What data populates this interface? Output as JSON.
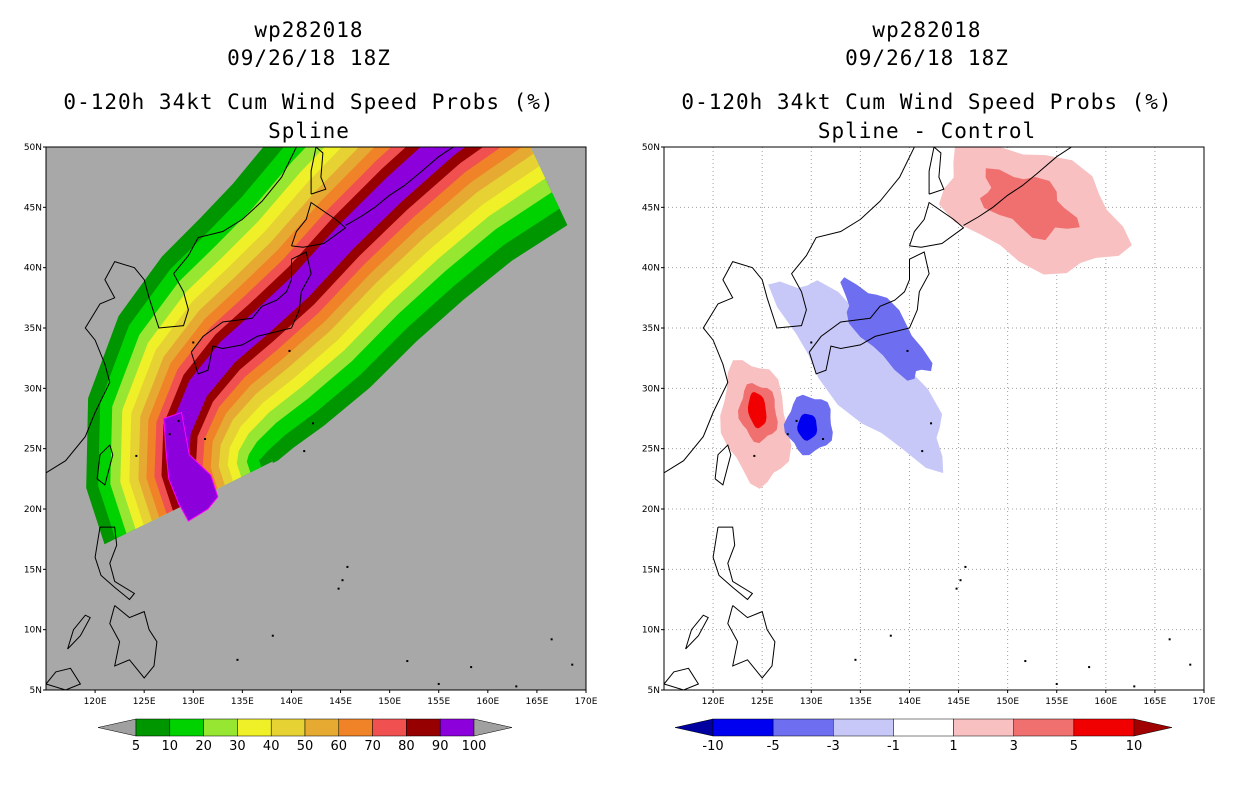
{
  "chart_data": [
    {
      "type": "contour-map",
      "title_lines": [
        "wp282018",
        "09/26/18 18Z",
        "0-120h 34kt Cum Wind Speed Probs (%)",
        "Spline"
      ],
      "map_extent": {
        "lon": [
          115,
          170
        ],
        "lat": [
          5,
          50
        ]
      },
      "x_ticks": [
        "120E",
        "125E",
        "130E",
        "135E",
        "140E",
        "145E",
        "150E",
        "155E",
        "160E",
        "165E",
        "170E"
      ],
      "y_ticks": [
        "50N",
        "45N",
        "40N",
        "35N",
        "30N",
        "25N",
        "20N",
        "15N",
        "10N",
        "5N"
      ],
      "colorbar": {
        "labels": [
          "5",
          "10",
          "20",
          "30",
          "40",
          "50",
          "60",
          "70",
          "80",
          "90",
          "100"
        ],
        "colors": [
          "#a0a0a0",
          "#009600",
          "#00d200",
          "#96e632",
          "#f0f028",
          "#e6d232",
          "#e6aa32",
          "#f08228",
          "#f05050",
          "#960000",
          "#8c00dc",
          "#a0a0a0"
        ]
      },
      "background_color": "#a8a8a8"
    },
    {
      "type": "contour-map",
      "title_lines": [
        "wp282018",
        "09/26/18 18Z",
        "0-120h 34kt Cum Wind Speed Probs (%)",
        "Spline - Control"
      ],
      "map_extent": {
        "lon": [
          115,
          170
        ],
        "lat": [
          5,
          50
        ]
      },
      "x_ticks": [
        "120E",
        "125E",
        "130E",
        "135E",
        "140E",
        "145E",
        "150E",
        "155E",
        "160E",
        "165E",
        "170E"
      ],
      "y_ticks": [
        "50N",
        "45N",
        "40N",
        "35N",
        "30N",
        "25N",
        "20N",
        "15N",
        "10N",
        "5N"
      ],
      "colorbar": {
        "labels": [
          "-10",
          "-5",
          "-3",
          "-1",
          "1",
          "3",
          "5",
          "10"
        ],
        "colors": [
          "#0000a0",
          "#0000f0",
          "#6e6ef0",
          "#c8c8f8",
          "#ffffff",
          "#f8c0c0",
          "#f07070",
          "#f00000",
          "#a00000"
        ]
      },
      "background_color": "#ffffff"
    }
  ]
}
